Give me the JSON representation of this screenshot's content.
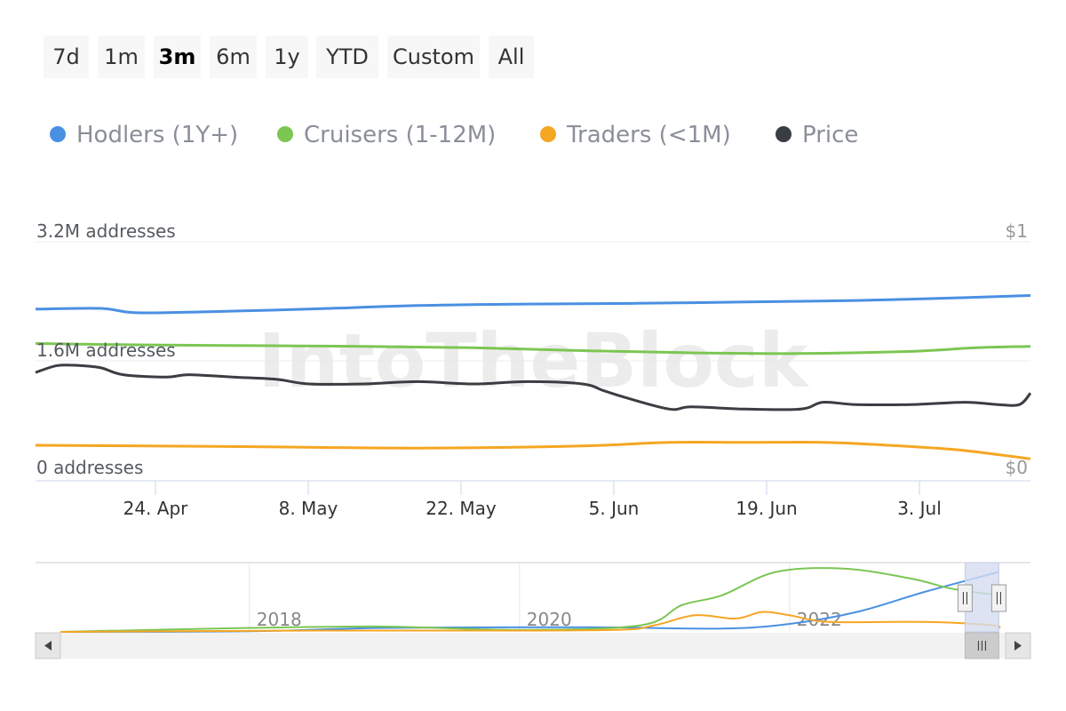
{
  "range_selector": {
    "buttons": [
      "7d",
      "1m",
      "3m",
      "6m",
      "1y",
      "YTD",
      "Custom",
      "All"
    ],
    "active": "3m"
  },
  "legend": [
    {
      "label": "Hodlers (1Y+)",
      "color": "#4a90e2"
    },
    {
      "label": "Cruisers (1-12M)",
      "color": "#7cc653"
    },
    {
      "label": "Traders (<1M)",
      "color": "#f5a623"
    },
    {
      "label": "Price",
      "color": "#3a3d42"
    }
  ],
  "watermark": "IntoTheBlock",
  "chart_data": {
    "type": "line",
    "x_labels": [
      "24. Apr",
      "8. May",
      "22. May",
      "5. Jun",
      "19. Jun",
      "3. Jul"
    ],
    "y_left_ticks": [
      "3.2M addresses",
      "1.6M addresses",
      "0 addresses"
    ],
    "y_right_ticks": [
      "$1",
      "$0"
    ],
    "ylim_left": [
      0,
      3200000
    ],
    "ylim_right": [
      0,
      1
    ],
    "grid": true,
    "legend_position": "top-left",
    "x_range_days": [
      0,
      91
    ],
    "series": [
      {
        "name": "Hodlers (1Y+)",
        "color": "#4a90e2",
        "axis": "left",
        "x": [
          0,
          6,
          9,
          15,
          25,
          35,
          45,
          55,
          65,
          75,
          85,
          91
        ],
        "y": [
          2260000,
          2270000,
          2210000,
          2220000,
          2260000,
          2310000,
          2330000,
          2340000,
          2360000,
          2380000,
          2420000,
          2450000
        ]
      },
      {
        "name": "Cruisers (1-12M)",
        "color": "#7cc653",
        "axis": "left",
        "x": [
          0,
          10,
          20,
          30,
          40,
          50,
          60,
          70,
          80,
          86,
          91
        ],
        "y": [
          1780000,
          1760000,
          1750000,
          1740000,
          1720000,
          1680000,
          1650000,
          1640000,
          1670000,
          1720000,
          1740000
        ]
      },
      {
        "name": "Traders (<1M)",
        "color": "#f5a623",
        "axis": "left",
        "x": [
          0,
          10,
          20,
          35,
          50,
          58,
          65,
          72,
          78,
          84,
          88,
          91
        ],
        "y": [
          360000,
          350000,
          340000,
          320000,
          350000,
          400000,
          400000,
          400000,
          360000,
          300000,
          230000,
          170000
        ]
      },
      {
        "name": "Price",
        "color": "#3a3d42",
        "axis": "right",
        "x": [
          0,
          2,
          4,
          6,
          8,
          12,
          14,
          18,
          22,
          25,
          30,
          35,
          40,
          45,
          50,
          52,
          54,
          58,
          60,
          65,
          70,
          72,
          75,
          80,
          85,
          88,
          90,
          91
        ],
        "y": [
          0.43,
          0.46,
          0.46,
          0.45,
          0.42,
          0.41,
          0.42,
          0.41,
          0.4,
          0.38,
          0.38,
          0.39,
          0.38,
          0.39,
          0.38,
          0.35,
          0.32,
          0.27,
          0.28,
          0.27,
          0.27,
          0.3,
          0.29,
          0.29,
          0.3,
          0.29,
          0.29,
          0.34
        ]
      }
    ]
  },
  "navigator": {
    "year_labels": [
      "2018",
      "2020",
      "2022"
    ],
    "x_range_years": [
      2016.6,
      2023.6
    ],
    "selection_years": [
      2023.3,
      2023.55
    ],
    "series": [
      {
        "name": "Hodlers",
        "color": "#4a90e2",
        "x": [
          2016.6,
          2018.0,
          2019.0,
          2020.5,
          2021.5,
          2022.0,
          2022.5,
          2023.0,
          2023.55
        ],
        "y": [
          0.0,
          0.01,
          0.06,
          0.07,
          0.05,
          0.12,
          0.3,
          0.6,
          0.9
        ]
      },
      {
        "name": "Cruisers",
        "color": "#7cc653",
        "x": [
          2016.6,
          2018.0,
          2019.0,
          2020.0,
          2020.9,
          2021.2,
          2021.5,
          2021.9,
          2022.4,
          2022.9,
          2023.2,
          2023.55
        ],
        "y": [
          0.0,
          0.06,
          0.08,
          0.03,
          0.1,
          0.4,
          0.55,
          0.9,
          0.95,
          0.8,
          0.65,
          0.55
        ]
      },
      {
        "name": "Traders",
        "color": "#f5a623",
        "x": [
          2016.6,
          2018.5,
          2019.5,
          2020.7,
          2021.0,
          2021.3,
          2021.6,
          2021.8,
          2022.0,
          2022.3,
          2023.0,
          2023.5,
          2023.55
        ],
        "y": [
          0.0,
          0.02,
          0.02,
          0.03,
          0.1,
          0.25,
          0.2,
          0.3,
          0.25,
          0.15,
          0.15,
          0.1,
          0.05
        ]
      }
    ]
  }
}
